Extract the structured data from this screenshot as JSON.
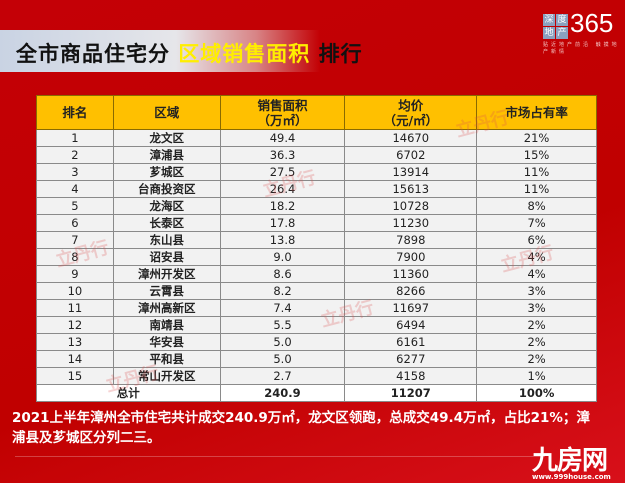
{
  "title": {
    "part1": "全市商品住宅分",
    "highlight": "区域销售面积",
    "part2": "排行"
  },
  "logo": {
    "chars": [
      "深",
      "度",
      "地",
      "产"
    ],
    "number": "365",
    "tagline": "贴近地产前沿 触摸地产新情"
  },
  "table": {
    "headers": [
      "排名",
      "区域",
      "销售面积\n（万㎡）",
      "均价\n（元/㎡）",
      "市场占有率"
    ],
    "rows": [
      [
        "1",
        "龙文区",
        "49.4",
        "14670",
        "21%"
      ],
      [
        "2",
        "漳浦县",
        "36.3",
        "6702",
        "15%"
      ],
      [
        "3",
        "芗城区",
        "27.5",
        "13914",
        "11%"
      ],
      [
        "4",
        "台商投资区",
        "26.4",
        "15613",
        "11%"
      ],
      [
        "5",
        "龙海区",
        "18.2",
        "10728",
        "8%"
      ],
      [
        "6",
        "长泰区",
        "17.8",
        "11230",
        "7%"
      ],
      [
        "7",
        "东山县",
        "13.8",
        "7898",
        "6%"
      ],
      [
        "8",
        "诏安县",
        "9.0",
        "7900",
        "4%"
      ],
      [
        "9",
        "漳州开发区",
        "8.6",
        "11360",
        "4%"
      ],
      [
        "10",
        "云霄县",
        "8.2",
        "8266",
        "3%"
      ],
      [
        "11",
        "漳州高新区",
        "7.4",
        "11697",
        "3%"
      ],
      [
        "12",
        "南靖县",
        "5.5",
        "6494",
        "2%"
      ],
      [
        "13",
        "华安县",
        "5.0",
        "6161",
        "2%"
      ],
      [
        "14",
        "平和县",
        "5.0",
        "6277",
        "2%"
      ],
      [
        "15",
        "常山开发区",
        "2.7",
        "4158",
        "1%"
      ]
    ],
    "total": {
      "label": "总计",
      "area": "240.9",
      "price": "11207",
      "share": "100%"
    }
  },
  "caption": "2021上半年漳州全市住宅共计成交240.9万㎡，龙文区领跑，总成交49.4万㎡，占比21%；漳浦县及芗城区分列二三。",
  "watermark": {
    "text": "九房网",
    "url": "www.999house.com",
    "stamp": "立丹行"
  },
  "colors": {
    "background": "#c00000",
    "header": "#ffc000",
    "highlight": "#ffee00"
  }
}
